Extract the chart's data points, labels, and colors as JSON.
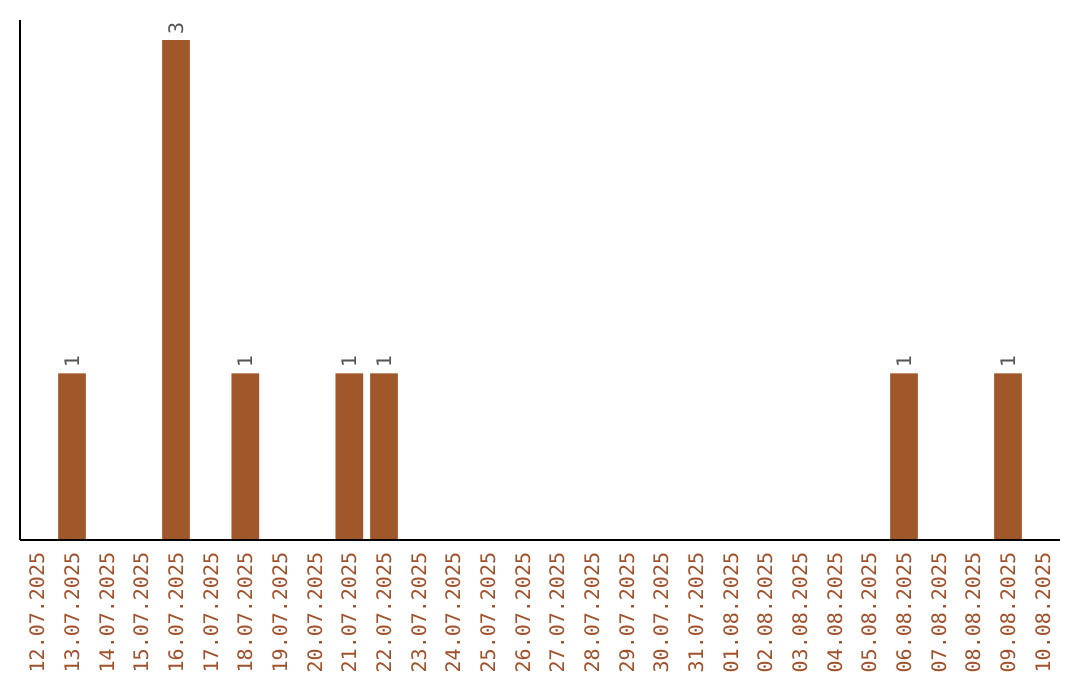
{
  "chart_data": {
    "type": "bar",
    "categories": [
      "12.07.2025",
      "13.07.2025",
      "14.07.2025",
      "15.07.2025",
      "16.07.2025",
      "17.07.2025",
      "18.07.2025",
      "19.07.2025",
      "20.07.2025",
      "21.07.2025",
      "22.07.2025",
      "23.07.2025",
      "24.07.2025",
      "25.07.2025",
      "26.07.2025",
      "27.07.2025",
      "28.07.2025",
      "29.07.2025",
      "30.07.2025",
      "31.07.2025",
      "01.08.2025",
      "02.08.2025",
      "03.08.2025",
      "04.08.2025",
      "05.08.2025",
      "06.08.2025",
      "07.08.2025",
      "08.08.2025",
      "09.08.2025",
      "10.08.2025"
    ],
    "values": [
      0,
      1,
      0,
      0,
      3,
      0,
      1,
      0,
      0,
      1,
      1,
      0,
      0,
      0,
      0,
      0,
      0,
      0,
      0,
      0,
      0,
      0,
      0,
      0,
      0,
      1,
      0,
      0,
      1,
      0
    ],
    "value_labels": [
      null,
      "1",
      null,
      null,
      "3",
      null,
      "1",
      null,
      null,
      "1",
      "1",
      null,
      null,
      null,
      null,
      null,
      null,
      null,
      null,
      null,
      null,
      null,
      null,
      null,
      null,
      "1",
      null,
      null,
      "1",
      null
    ],
    "color": "#a0582a",
    "tick_labels": "x"
  }
}
